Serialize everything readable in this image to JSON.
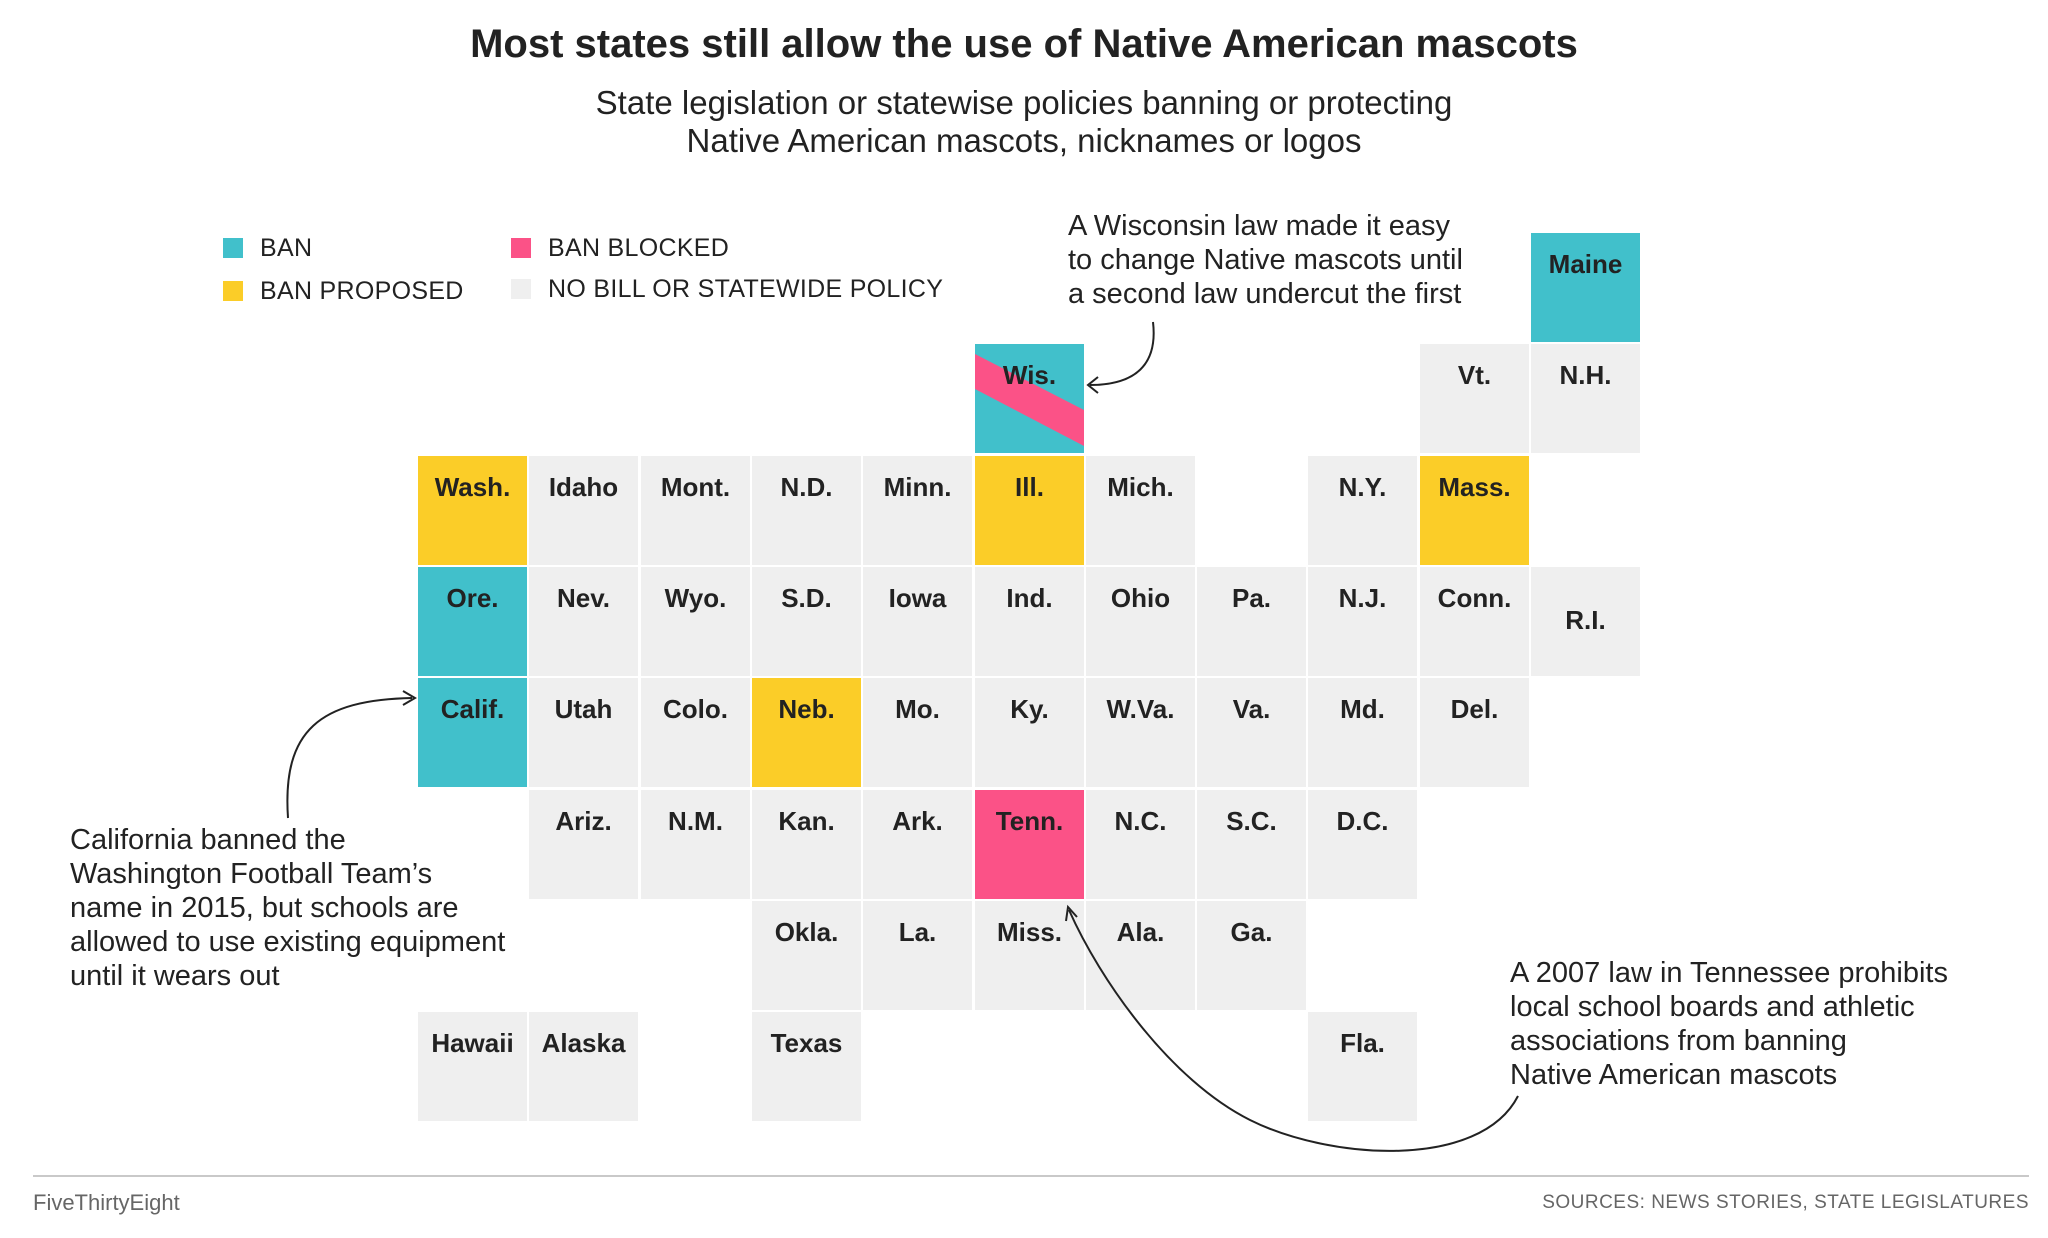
{
  "title": "Most states still allow the use of Native American mascots",
  "subtitle": {
    "line1": "State legislation or statewise policies banning or protecting",
    "line2": "Native American mascots, nicknames or logos"
  },
  "colors": {
    "ban": "#41c0cb",
    "ban_proposed": "#fbcd28",
    "ban_blocked": "#fb5287",
    "none": "#efefef"
  },
  "legend": {
    "ban": "BAN",
    "ban_proposed": "BAN PROPOSED",
    "ban_blocked": "BAN BLOCKED",
    "none": "NO BILL OR STATEWIDE POLICY"
  },
  "states": [
    {
      "abbr": "Maine",
      "status": "ban"
    },
    {
      "abbr": "Wis.",
      "status": "ban/ban_blocked"
    },
    {
      "abbr": "Vt.",
      "status": "none"
    },
    {
      "abbr": "N.H.",
      "status": "none"
    },
    {
      "abbr": "Wash.",
      "status": "ban_proposed"
    },
    {
      "abbr": "Idaho",
      "status": "none"
    },
    {
      "abbr": "Mont.",
      "status": "none"
    },
    {
      "abbr": "N.D.",
      "status": "none"
    },
    {
      "abbr": "Minn.",
      "status": "none"
    },
    {
      "abbr": "Ill.",
      "status": "ban_proposed"
    },
    {
      "abbr": "Mich.",
      "status": "none"
    },
    {
      "abbr": "N.Y.",
      "status": "none"
    },
    {
      "abbr": "Mass.",
      "status": "ban_proposed"
    },
    {
      "abbr": "Ore.",
      "status": "ban"
    },
    {
      "abbr": "Nev.",
      "status": "none"
    },
    {
      "abbr": "Wyo.",
      "status": "none"
    },
    {
      "abbr": "S.D.",
      "status": "none"
    },
    {
      "abbr": "Iowa",
      "status": "none"
    },
    {
      "abbr": "Ind.",
      "status": "none"
    },
    {
      "abbr": "Ohio",
      "status": "none"
    },
    {
      "abbr": "Pa.",
      "status": "none"
    },
    {
      "abbr": "N.J.",
      "status": "none"
    },
    {
      "abbr": "Conn.",
      "status": "none"
    },
    {
      "abbr": "R.I.",
      "status": "none"
    },
    {
      "abbr": "Calif.",
      "status": "ban"
    },
    {
      "abbr": "Utah",
      "status": "none"
    },
    {
      "abbr": "Colo.",
      "status": "none"
    },
    {
      "abbr": "Neb.",
      "status": "ban_proposed"
    },
    {
      "abbr": "Mo.",
      "status": "none"
    },
    {
      "abbr": "Ky.",
      "status": "none"
    },
    {
      "abbr": "W.Va.",
      "status": "none"
    },
    {
      "abbr": "Va.",
      "status": "none"
    },
    {
      "abbr": "Md.",
      "status": "none"
    },
    {
      "abbr": "Del.",
      "status": "none"
    },
    {
      "abbr": "Ariz.",
      "status": "none"
    },
    {
      "abbr": "N.M.",
      "status": "none"
    },
    {
      "abbr": "Kan.",
      "status": "none"
    },
    {
      "abbr": "Ark.",
      "status": "none"
    },
    {
      "abbr": "Tenn.",
      "status": "ban_blocked"
    },
    {
      "abbr": "N.C.",
      "status": "none"
    },
    {
      "abbr": "S.C.",
      "status": "none"
    },
    {
      "abbr": "D.C.",
      "status": "none"
    },
    {
      "abbr": "Okla.",
      "status": "none"
    },
    {
      "abbr": "La.",
      "status": "none"
    },
    {
      "abbr": "Miss.",
      "status": "none"
    },
    {
      "abbr": "Ala.",
      "status": "none"
    },
    {
      "abbr": "Ga.",
      "status": "none"
    },
    {
      "abbr": "Hawaii",
      "status": "none"
    },
    {
      "abbr": "Alaska",
      "status": "none"
    },
    {
      "abbr": "Texas",
      "status": "none"
    },
    {
      "abbr": "Fla.",
      "status": "none"
    }
  ],
  "annotations": {
    "wisconsin": "A Wisconsin law made it easy\nto change Native mascots until\na second law undercut the first",
    "california": "California banned the\nWashington Football Team’s\nname in 2015, but schools are\nallowed to use existing equipment\nuntil it wears out",
    "tennessee": "A 2007 law in Tennessee prohibits\nlocal school boards and athletic\nassociations from banning\nNative American mascots"
  },
  "footer": {
    "brand": "FiveThirtyEight",
    "sources": "SOURCES: NEWS STORIES, STATE LEGISLATURES"
  }
}
